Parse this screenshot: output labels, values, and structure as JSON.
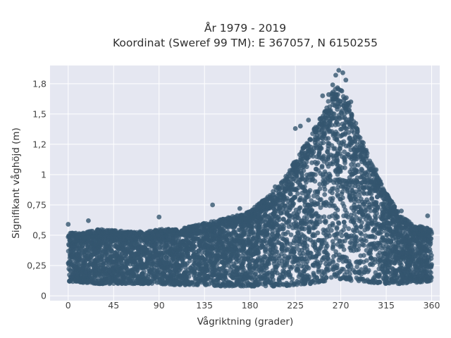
{
  "chart_data": {
    "type": "scatter",
    "title": "År 1979 - 2019",
    "subtitle": "Koordinat (Sweref 99 TM): E 367057, N 6150255",
    "xlabel": "Vågriktning (grader)",
    "ylabel": "Signifikant våghöjd (m)",
    "xlim": [
      -18,
      368
    ],
    "ylim": [
      -0.04,
      1.9
    ],
    "x_ticks": [
      0,
      45,
      90,
      135,
      180,
      225,
      270,
      315,
      360
    ],
    "x_tick_labels": [
      "0",
      "45",
      "90",
      "135",
      "180",
      "225",
      "270",
      "315",
      "360"
    ],
    "y_ticks": [
      0,
      0.25,
      0.5,
      0.75,
      1,
      1.25,
      1.5,
      1.75
    ],
    "y_tick_labels": [
      "0",
      "0,25",
      "0,5",
      "0,75",
      "1",
      "1,2",
      "1,5",
      "1,8"
    ],
    "grid": true,
    "marker_color": "#34566f",
    "background_color": "#e5e7f1",
    "envelope": {
      "direction_deg": [
        0,
        15,
        30,
        45,
        60,
        75,
        90,
        105,
        120,
        135,
        150,
        165,
        180,
        195,
        210,
        225,
        240,
        255,
        262,
        270,
        278,
        285,
        300,
        315,
        330,
        345,
        360
      ],
      "upper_hs": [
        0.52,
        0.52,
        0.55,
        0.54,
        0.53,
        0.53,
        0.55,
        0.55,
        0.57,
        0.6,
        0.63,
        0.66,
        0.7,
        0.8,
        0.92,
        1.12,
        1.32,
        1.55,
        1.7,
        1.73,
        1.62,
        1.42,
        1.1,
        0.85,
        0.65,
        0.58,
        0.55
      ],
      "lower_hs": [
        0.12,
        0.11,
        0.1,
        0.1,
        0.1,
        0.1,
        0.1,
        0.09,
        0.09,
        0.09,
        0.08,
        0.08,
        0.08,
        0.08,
        0.08,
        0.09,
        0.1,
        0.12,
        0.13,
        0.14,
        0.13,
        0.12,
        0.11,
        0.1,
        0.1,
        0.11,
        0.12
      ]
    },
    "notable_points": [
      {
        "x": 268,
        "y": 1.86
      },
      {
        "x": 272,
        "y": 1.84
      },
      {
        "x": 265,
        "y": 1.82
      },
      {
        "x": 275,
        "y": 1.78
      },
      {
        "x": 262,
        "y": 1.74
      },
      {
        "x": 258,
        "y": 1.66
      },
      {
        "x": 252,
        "y": 1.65
      },
      {
        "x": 280,
        "y": 1.6
      },
      {
        "x": 230,
        "y": 1.4
      },
      {
        "x": 225,
        "y": 1.38
      },
      {
        "x": 238,
        "y": 1.45
      },
      {
        "x": 305,
        "y": 1.04
      },
      {
        "x": 90,
        "y": 0.65
      },
      {
        "x": 20,
        "y": 0.62
      },
      {
        "x": 143,
        "y": 0.75
      },
      {
        "x": 0,
        "y": 0.59
      },
      {
        "x": 356,
        "y": 0.66
      },
      {
        "x": 170,
        "y": 0.72
      },
      {
        "x": 205,
        "y": 0.9
      },
      {
        "x": 330,
        "y": 0.7
      },
      {
        "x": 320,
        "y": 0.78
      }
    ]
  }
}
